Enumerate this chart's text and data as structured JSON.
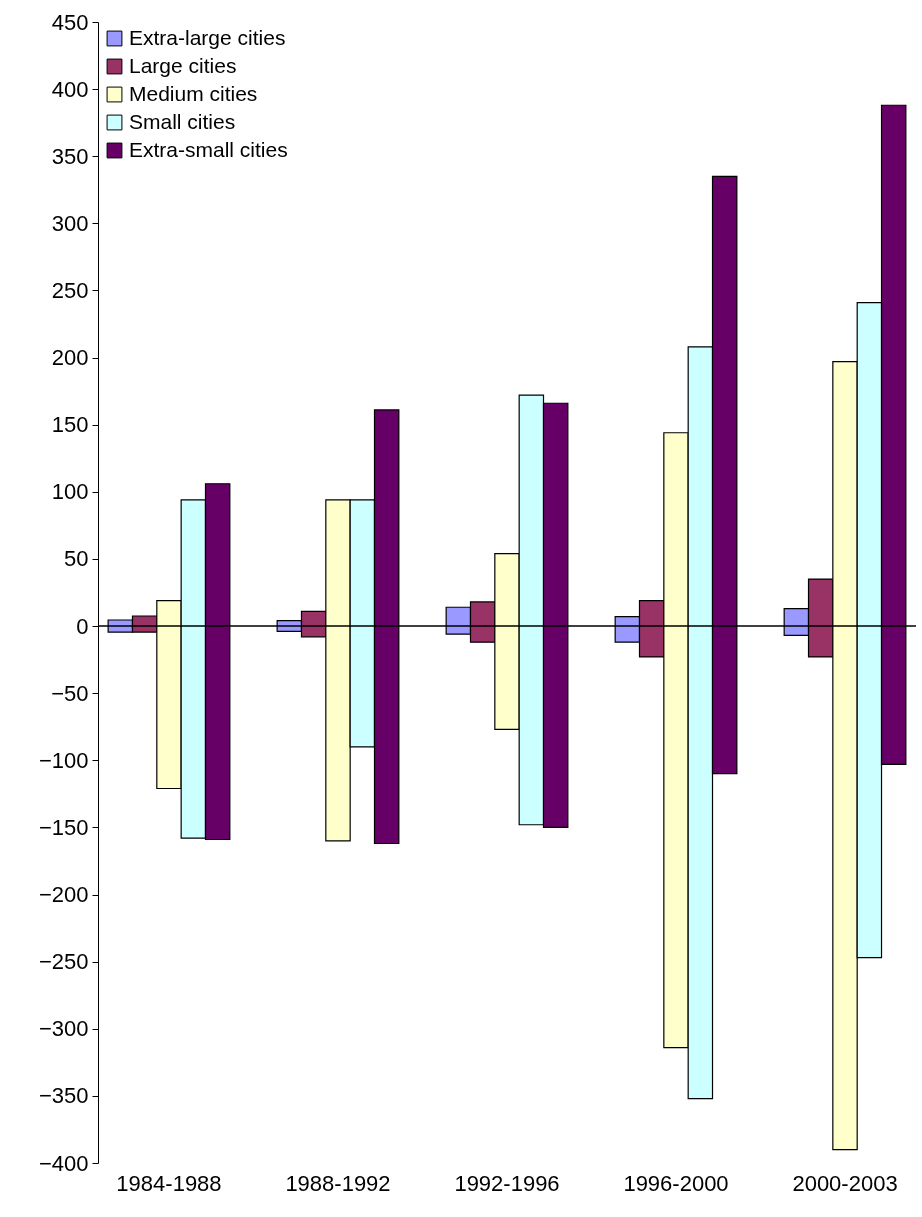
{
  "chart_data": {
    "type": "bar",
    "categories": [
      "1984-1988",
      "1988-1992",
      "1992-1996",
      "1996-2000",
      "2000-2003"
    ],
    "series": [
      {
        "name": "Extra-large cities",
        "color": "#9999ff",
        "base": [
          -4.5,
          -4,
          -6,
          -12,
          -7
        ],
        "values": [
          9,
          8,
          20,
          19,
          20
        ]
      },
      {
        "name": "Large cities",
        "color": "#993366",
        "base": [
          -4.5,
          -8,
          -12,
          -23,
          -23
        ],
        "values": [
          12,
          19,
          30,
          42,
          58
        ]
      },
      {
        "name": "Medium cities",
        "color": "#ffffcc",
        "base": [
          -121,
          -160,
          -77,
          -314,
          -390
        ],
        "values": [
          140,
          254,
          131,
          458,
          587
        ]
      },
      {
        "name": "Small cities",
        "color": "#ccffff",
        "base": [
          -158,
          -90,
          -148,
          -352,
          -247
        ],
        "values": [
          252,
          184,
          320,
          560,
          488
        ]
      },
      {
        "name": "Extra-small cities",
        "color": "#660066",
        "base": [
          -159,
          -162,
          -150,
          -110,
          -103
        ],
        "values": [
          265,
          323,
          316,
          445,
          491
        ]
      }
    ],
    "ylim": [
      -400,
      450
    ],
    "yticks": [
      -400,
      -350,
      -300,
      -250,
      -200,
      -150,
      -100,
      -50,
      0,
      50,
      100,
      150,
      200,
      250,
      300,
      350,
      400,
      450
    ],
    "legend": "top left"
  }
}
